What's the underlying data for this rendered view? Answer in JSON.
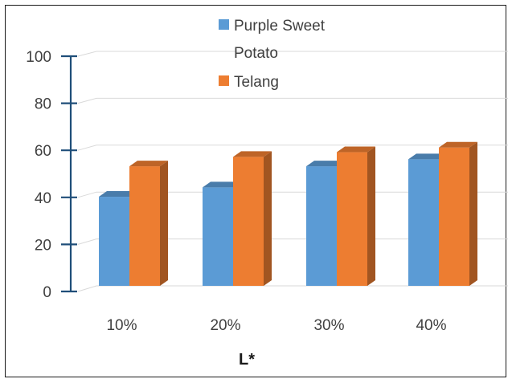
{
  "chart_data": {
    "type": "bar",
    "categories": [
      "10%",
      "20%",
      "30%",
      "40%"
    ],
    "series": [
      {
        "name": "Purple Sweet Potato",
        "values": [
          38,
          42,
          51,
          54
        ],
        "color": "#5b9bd5"
      },
      {
        "name": "Telang",
        "values": [
          51,
          55,
          57,
          59
        ],
        "color": "#ed7d31"
      }
    ],
    "title": "",
    "xlabel": "L*",
    "ylabel": "",
    "ylim": [
      0,
      100
    ],
    "yticks": [
      0,
      20,
      40,
      60,
      80,
      100
    ],
    "grid": true,
    "legend_position": "top",
    "style": "3d-clustered-column"
  }
}
